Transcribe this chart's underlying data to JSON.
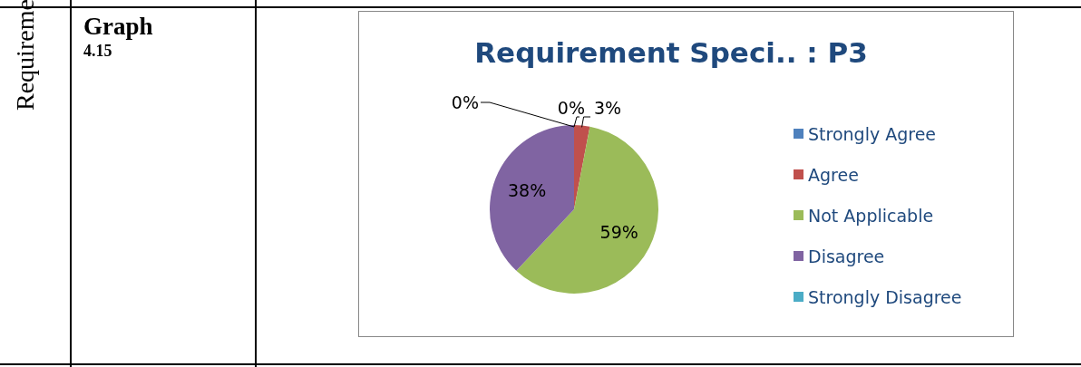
{
  "chart_data": {
    "type": "pie",
    "title": "Requirement Speci.. : P3",
    "annotations": [
      "Requireme",
      "Graph",
      "4.15"
    ],
    "categories": [
      "Strongly Agree",
      "Agree",
      "Not Applicable",
      "Disagree",
      "Strongly Disagree"
    ],
    "values": [
      0,
      3,
      59,
      38,
      0
    ],
    "colors": [
      "#4f81bd",
      "#c0504d",
      "#9bbb59",
      "#8064a2",
      "#4bacc6"
    ],
    "value_labels": [
      "0%",
      "3%",
      "59%",
      "38%",
      "0%"
    ],
    "legend": "right"
  }
}
